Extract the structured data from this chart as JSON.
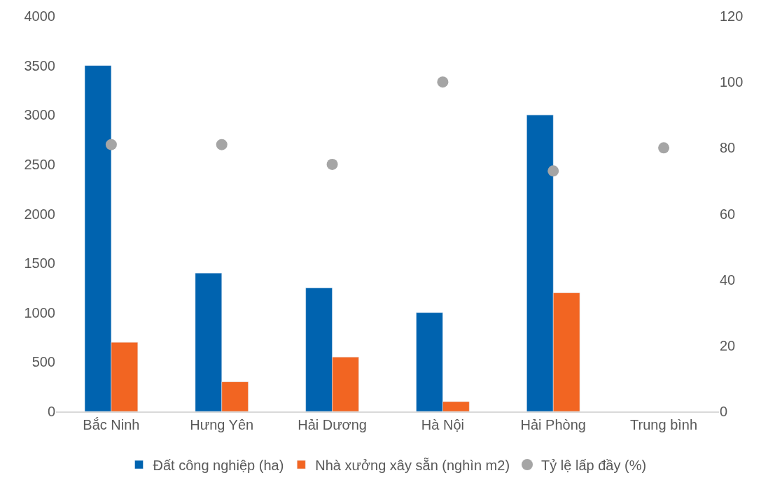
{
  "chart_data": {
    "type": "bar",
    "categories": [
      "Bắc Ninh",
      "Hưng Yên",
      "Hải Dương",
      "Hà Nội",
      "Hải Phòng",
      "Trung bình"
    ],
    "series": [
      {
        "name": "Đất công nghiệp (ha)",
        "color": "#0063af",
        "values": [
          3500,
          1400,
          1250,
          1000,
          3000,
          null
        ]
      },
      {
        "name": "Nhà xưởng xây sẵn (nghìn m2)",
        "color": "#f26522",
        "values": [
          700,
          300,
          550,
          100,
          1200,
          null
        ]
      },
      {
        "name": "Tỷ lệ lấp đầy (%)",
        "type": "scatter",
        "axis": "y2",
        "marker": "circle",
        "color": "#a5a5a5",
        "values": [
          81,
          81,
          75,
          100,
          73,
          80
        ]
      }
    ],
    "ylim": [
      0,
      4000
    ],
    "yticks": [
      0,
      500,
      1000,
      1500,
      2000,
      2500,
      3000,
      3500,
      4000
    ],
    "y2lim": [
      0,
      120
    ],
    "y2ticks": [
      0,
      20,
      40,
      60,
      80,
      100,
      120
    ],
    "legend": "bottom"
  }
}
